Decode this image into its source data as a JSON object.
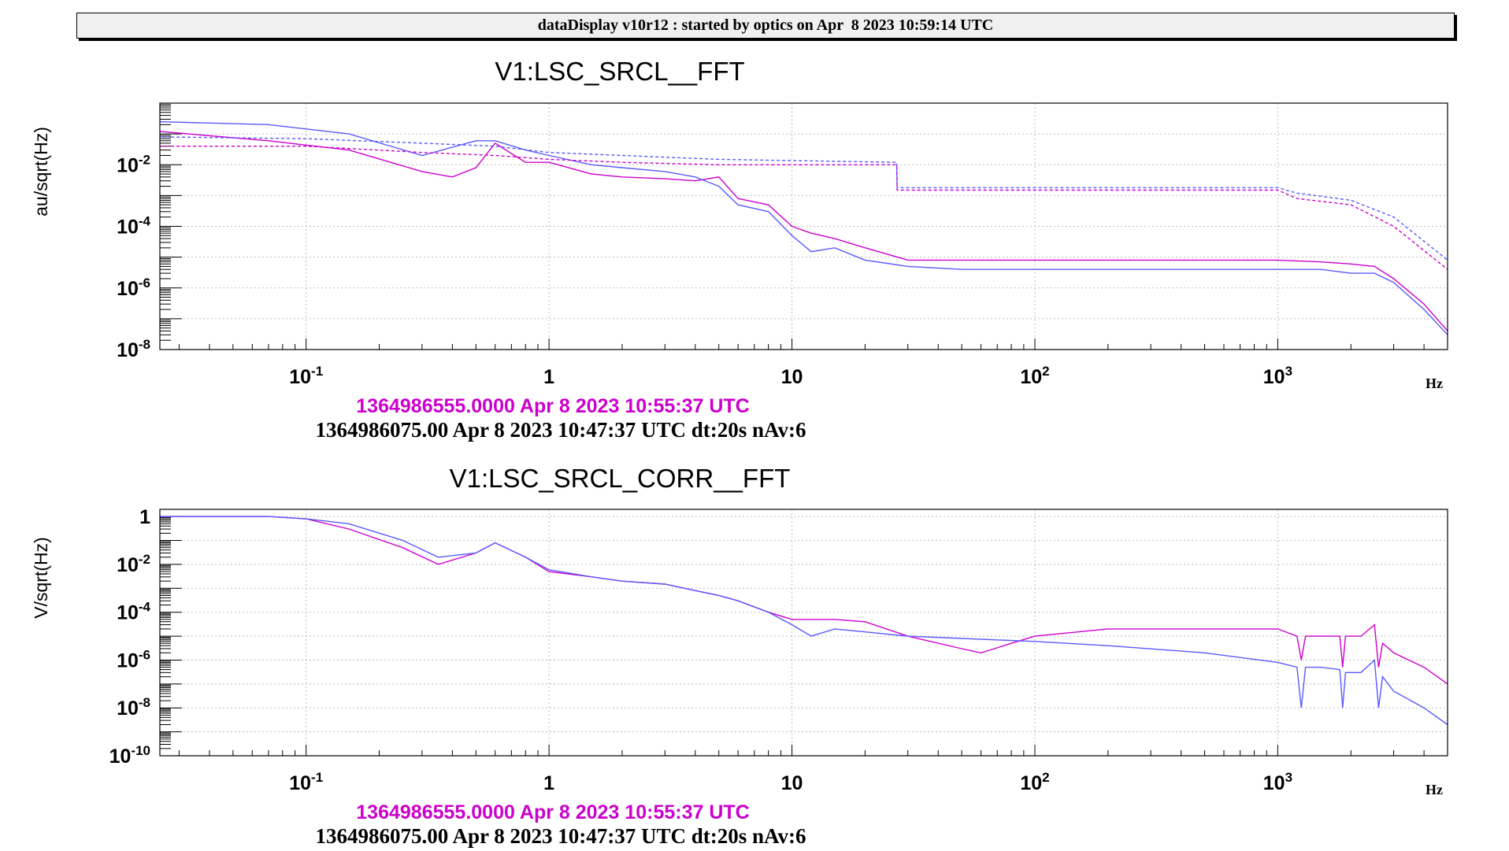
{
  "window": {
    "title": "dataDisplay v10r12 : started by optics on Apr  8 2023 10:59:14 UTC"
  },
  "colors": {
    "magenta": "#cc00cc",
    "blue": "#5a5aff",
    "frame": "#000000",
    "grid": "#bbbbbb"
  },
  "chart_data": [
    {
      "type": "line",
      "title": "V1:LSC_SRCL__FFT",
      "ylabel": "au/sqrt(Hz)",
      "xlabel": "Hz",
      "xscale": "log",
      "yscale": "log",
      "xlim": [
        0.025,
        5000
      ],
      "ylim": [
        1e-08,
        1
      ],
      "grid": true,
      "xticks": [
        {
          "value": 0.1,
          "base": "10",
          "exp": "-1"
        },
        {
          "value": 1,
          "base": "1",
          "exp": ""
        },
        {
          "value": 10,
          "base": "10",
          "exp": ""
        },
        {
          "value": 100,
          "base": "10",
          "exp": "2"
        },
        {
          "value": 1000,
          "base": "10",
          "exp": "3"
        }
      ],
      "yticks": [
        {
          "value": 0.01,
          "base": "10",
          "exp": "-2"
        },
        {
          "value": 0.0001,
          "base": "10",
          "exp": "-4"
        },
        {
          "value": 1e-06,
          "base": "10",
          "exp": "-6"
        },
        {
          "value": 1e-08,
          "base": "10",
          "exp": "-8"
        }
      ],
      "series": [
        {
          "color": "magenta",
          "style": "solid",
          "x": [
            0.025,
            0.07,
            0.15,
            0.3,
            0.4,
            0.5,
            0.6,
            0.8,
            1,
            1.5,
            2,
            3,
            4,
            5,
            6,
            8,
            10,
            12,
            15,
            20,
            30,
            50,
            100,
            200,
            500,
            1000,
            1500,
            2000,
            2500,
            3000,
            4000,
            5000
          ],
          "y": [
            0.12,
            0.06,
            0.03,
            0.006,
            0.004,
            0.008,
            0.05,
            0.012,
            0.012,
            0.005,
            0.004,
            0.0035,
            0.003,
            0.004,
            0.0008,
            0.0005,
            0.0001,
            6e-05,
            4e-05,
            2e-05,
            8e-06,
            8e-06,
            8e-06,
            8e-06,
            8e-06,
            8e-06,
            7e-06,
            6e-06,
            5e-06,
            2e-06,
            3e-07,
            4e-08
          ]
        },
        {
          "color": "blue",
          "style": "solid",
          "x": [
            0.025,
            0.07,
            0.15,
            0.3,
            0.5,
            0.6,
            0.8,
            1,
            1.5,
            2,
            3,
            4,
            5,
            6,
            8,
            10,
            12,
            15,
            20,
            30,
            50,
            100,
            200,
            500,
            1000,
            1500,
            2000,
            2500,
            3000,
            4000,
            5000
          ],
          "y": [
            0.25,
            0.2,
            0.1,
            0.02,
            0.06,
            0.06,
            0.03,
            0.02,
            0.01,
            0.008,
            0.006,
            0.004,
            0.002,
            0.0005,
            0.0003,
            5e-05,
            1.5e-05,
            2e-05,
            8e-06,
            5e-06,
            4e-06,
            4e-06,
            4e-06,
            4e-06,
            4e-06,
            4e-06,
            3e-06,
            3e-06,
            1.5e-06,
            2e-07,
            3e-08
          ]
        },
        {
          "color": "magenta",
          "style": "dashed",
          "x": [
            0.025,
            0.1,
            0.3,
            0.6,
            1,
            2,
            5,
            27,
            27.1,
            1000,
            1200,
            2000,
            3000,
            5000
          ],
          "y": [
            0.04,
            0.04,
            0.025,
            0.02,
            0.015,
            0.012,
            0.01,
            0.01,
            0.0015,
            0.0015,
            0.0008,
            0.0005,
            0.0001,
            4e-06
          ]
        },
        {
          "color": "blue",
          "style": "dashed",
          "x": [
            0.025,
            0.1,
            0.3,
            0.6,
            1,
            2,
            5,
            27,
            27.1,
            1000,
            1200,
            2000,
            3000,
            5000
          ],
          "y": [
            0.08,
            0.07,
            0.05,
            0.04,
            0.025,
            0.02,
            0.015,
            0.012,
            0.0018,
            0.0018,
            0.0012,
            0.0007,
            0.0002,
            8e-06
          ]
        }
      ],
      "legend": [
        {
          "text": "1364986555.0000 Apr 8 2023 10:55:37 UTC",
          "color": "magenta"
        },
        {
          "text": "1364986075.00 Apr 8 2023 10:47:37 UTC dt:20s nAv:6",
          "color": "black"
        }
      ]
    },
    {
      "type": "line",
      "title": "V1:LSC_SRCL_CORR__FFT",
      "ylabel": "V/sqrt(Hz)",
      "xlabel": "Hz",
      "xscale": "log",
      "yscale": "log",
      "xlim": [
        0.025,
        5000
      ],
      "ylim": [
        1e-10,
        2
      ],
      "grid": true,
      "xticks": [
        {
          "value": 0.1,
          "base": "10",
          "exp": "-1"
        },
        {
          "value": 1,
          "base": "1",
          "exp": ""
        },
        {
          "value": 10,
          "base": "10",
          "exp": ""
        },
        {
          "value": 100,
          "base": "10",
          "exp": "2"
        },
        {
          "value": 1000,
          "base": "10",
          "exp": "3"
        }
      ],
      "yticks": [
        {
          "value": 1,
          "base": "1",
          "exp": ""
        },
        {
          "value": 0.01,
          "base": "10",
          "exp": "-2"
        },
        {
          "value": 0.0001,
          "base": "10",
          "exp": "-4"
        },
        {
          "value": 1e-06,
          "base": "10",
          "exp": "-6"
        },
        {
          "value": 1e-08,
          "base": "10",
          "exp": "-8"
        },
        {
          "value": 1e-10,
          "base": "10",
          "exp": "-10"
        }
      ],
      "series": [
        {
          "color": "magenta",
          "style": "solid",
          "x": [
            0.025,
            0.07,
            0.1,
            0.15,
            0.25,
            0.35,
            0.5,
            0.6,
            0.8,
            1,
            1.5,
            2,
            3,
            4,
            5,
            6,
            8,
            10,
            15,
            20,
            30,
            50,
            60,
            80,
            100,
            200,
            500,
            1000,
            1200,
            1250,
            1300,
            1500,
            1800,
            1850,
            1900,
            2200,
            2500,
            2600,
            2700,
            3000,
            4000,
            5000
          ],
          "y": [
            1,
            1,
            0.8,
            0.3,
            0.05,
            0.01,
            0.03,
            0.08,
            0.02,
            0.005,
            0.003,
            0.002,
            0.0015,
            0.0008,
            0.0005,
            0.0003,
            0.0001,
            5e-05,
            5e-05,
            4e-05,
            1e-05,
            3e-06,
            2e-06,
            5e-06,
            1e-05,
            2e-05,
            2e-05,
            2e-05,
            1e-05,
            1e-06,
            1e-05,
            1e-05,
            1e-05,
            5e-07,
            1e-05,
            1e-05,
            3e-05,
            5e-07,
            5e-06,
            2e-06,
            5e-07,
            1e-07
          ]
        },
        {
          "color": "blue",
          "style": "solid",
          "x": [
            0.025,
            0.07,
            0.1,
            0.15,
            0.25,
            0.35,
            0.5,
            0.6,
            0.8,
            1,
            1.5,
            2,
            3,
            4,
            5,
            6,
            8,
            10,
            12,
            15,
            20,
            30,
            50,
            100,
            200,
            500,
            1000,
            1200,
            1250,
            1300,
            1500,
            1800,
            1850,
            1900,
            2200,
            2500,
            2600,
            2700,
            3000,
            4000,
            5000
          ],
          "y": [
            1,
            1,
            0.8,
            0.5,
            0.1,
            0.02,
            0.03,
            0.08,
            0.02,
            0.006,
            0.003,
            0.002,
            0.0015,
            0.0008,
            0.0005,
            0.0003,
            0.0001,
            3e-05,
            1e-05,
            2e-05,
            1.5e-05,
            1e-05,
            8e-06,
            6e-06,
            4e-06,
            2e-06,
            8e-07,
            5e-07,
            1e-08,
            5e-07,
            5e-07,
            4e-07,
            1e-08,
            3e-07,
            3e-07,
            1e-06,
            1e-08,
            2e-07,
            5e-08,
            1e-08,
            2e-09
          ]
        }
      ],
      "legend": [
        {
          "text": "1364986555.0000 Apr 8 2023 10:55:37 UTC",
          "color": "magenta"
        },
        {
          "text": "1364986075.00 Apr 8 2023 10:47:37 UTC dt:20s nAv:6",
          "color": "black"
        }
      ]
    }
  ]
}
